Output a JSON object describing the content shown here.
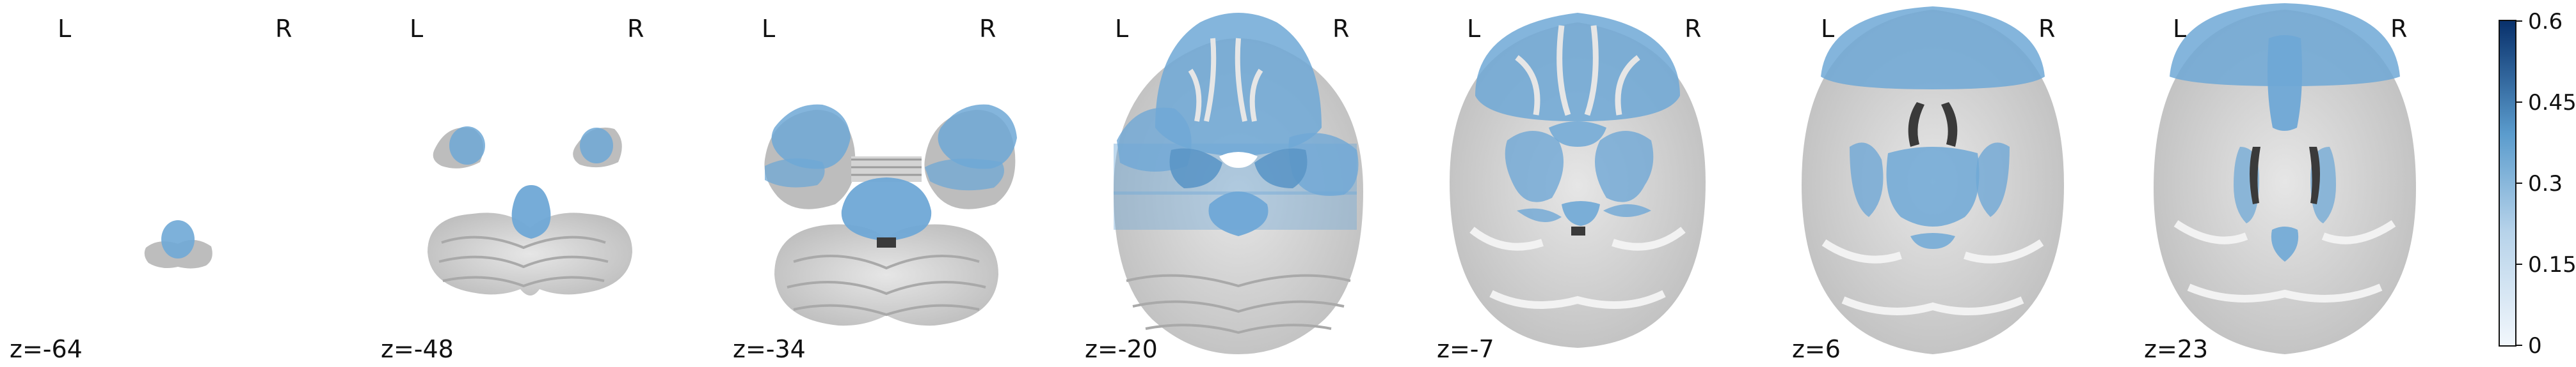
{
  "figure": {
    "orientation": {
      "left": "L",
      "right": "R"
    },
    "slices": [
      {
        "label": "z=-64"
      },
      {
        "label": "z=-48"
      },
      {
        "label": "z=-34"
      },
      {
        "label": "z=-20"
      },
      {
        "label": "z=-7"
      },
      {
        "label": "z=6"
      },
      {
        "label": "z=23"
      }
    ],
    "colorbar": {
      "ticks": [
        "0.6",
        "0.45",
        "0.3",
        "0.15",
        "0"
      ],
      "color_low": "#f2f7fc",
      "color_high": "#08306b"
    },
    "colors": {
      "background": "#ffffff",
      "brain_gray": "#cfcfcf",
      "overlay_blue": "#6fa8d6",
      "ventricle": "#3a3a3a",
      "text": "#111111"
    }
  }
}
